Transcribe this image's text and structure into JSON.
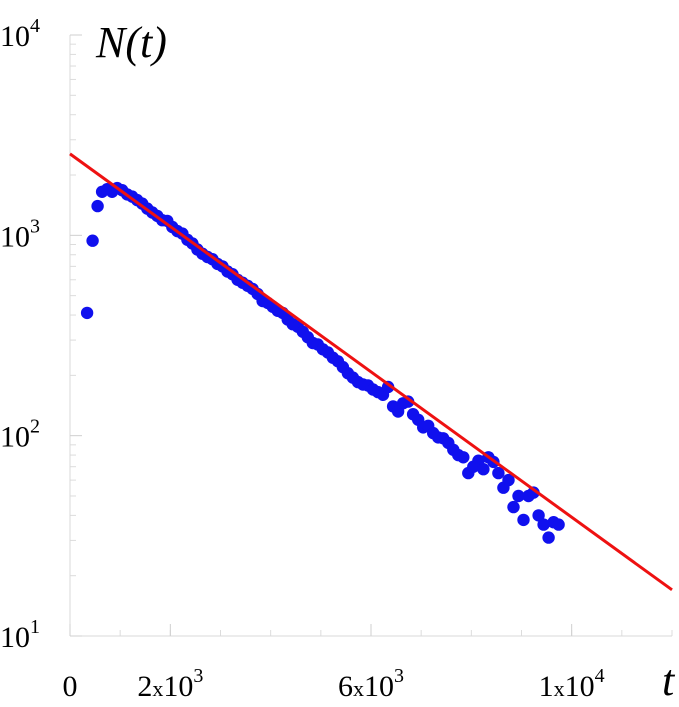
{
  "chart_data": {
    "type": "scatter",
    "title": "",
    "ylabel": "N(t)",
    "xlabel": "t",
    "x_scale": "linear",
    "y_scale": "log",
    "xlim": [
      0,
      12000
    ],
    "ylim": [
      10,
      10000
    ],
    "grid": false,
    "legend": "none",
    "x_ticks": [
      {
        "value": 0,
        "label": "0",
        "base": "0",
        "exp": ""
      },
      {
        "value": 2000,
        "label": "2x10^3",
        "base": "2x10",
        "exp": "3"
      },
      {
        "value": 6000,
        "label": "6x10^3",
        "base": "6x10",
        "exp": "3"
      },
      {
        "value": 10000,
        "label": "1x10^4",
        "base": "1x10",
        "exp": "4"
      }
    ],
    "y_ticks": [
      {
        "value": 10,
        "label": "10^1",
        "base": "10",
        "exp": "1"
      },
      {
        "value": 100,
        "label": "10^2",
        "base": "10",
        "exp": "2"
      },
      {
        "value": 1000,
        "label": "10^3",
        "base": "10",
        "exp": "3"
      },
      {
        "value": 10000,
        "label": "10^4",
        "base": "10",
        "exp": "4"
      }
    ],
    "series": [
      {
        "type": "scatter",
        "color": "#1010ee",
        "points": [
          [
            340,
            410
          ],
          [
            450,
            940
          ],
          [
            550,
            1400
          ],
          [
            640,
            1650
          ],
          [
            740,
            1700
          ],
          [
            840,
            1650
          ],
          [
            940,
            1720
          ],
          [
            1040,
            1680
          ],
          [
            1140,
            1600
          ],
          [
            1240,
            1560
          ],
          [
            1340,
            1500
          ],
          [
            1440,
            1440
          ],
          [
            1540,
            1360
          ],
          [
            1640,
            1300
          ],
          [
            1740,
            1250
          ],
          [
            1840,
            1190
          ],
          [
            1940,
            1180
          ],
          [
            2040,
            1100
          ],
          [
            2140,
            1050
          ],
          [
            2240,
            1020
          ],
          [
            2340,
            950
          ],
          [
            2440,
            910
          ],
          [
            2540,
            850
          ],
          [
            2640,
            810
          ],
          [
            2740,
            780
          ],
          [
            2840,
            760
          ],
          [
            2940,
            720
          ],
          [
            3040,
            700
          ],
          [
            3140,
            660
          ],
          [
            3240,
            640
          ],
          [
            3340,
            600
          ],
          [
            3440,
            580
          ],
          [
            3540,
            560
          ],
          [
            3640,
            540
          ],
          [
            3740,
            510
          ],
          [
            3840,
            470
          ],
          [
            3940,
            460
          ],
          [
            4040,
            440
          ],
          [
            4140,
            420
          ],
          [
            4240,
            410
          ],
          [
            4340,
            380
          ],
          [
            4440,
            360
          ],
          [
            4540,
            350
          ],
          [
            4640,
            330
          ],
          [
            4740,
            310
          ],
          [
            4840,
            290
          ],
          [
            4940,
            285
          ],
          [
            5040,
            270
          ],
          [
            5140,
            260
          ],
          [
            5240,
            245
          ],
          [
            5340,
            235
          ],
          [
            5440,
            220
          ],
          [
            5540,
            205
          ],
          [
            5640,
            195
          ],
          [
            5740,
            185
          ],
          [
            5840,
            180
          ],
          [
            5940,
            178
          ],
          [
            6040,
            170
          ],
          [
            6140,
            165
          ],
          [
            6240,
            160
          ],
          [
            6340,
            175
          ],
          [
            6440,
            140
          ],
          [
            6540,
            132
          ],
          [
            6640,
            145
          ],
          [
            6740,
            148
          ],
          [
            6840,
            128
          ],
          [
            6940,
            120
          ],
          [
            7040,
            110
          ],
          [
            7140,
            112
          ],
          [
            7240,
            103
          ],
          [
            7340,
            98
          ],
          [
            7440,
            97
          ],
          [
            7540,
            92
          ],
          [
            7640,
            85
          ],
          [
            7740,
            80
          ],
          [
            7840,
            78
          ],
          [
            7940,
            65
          ],
          [
            8040,
            70
          ],
          [
            8140,
            75
          ],
          [
            8240,
            68
          ],
          [
            8340,
            78
          ],
          [
            8440,
            74
          ],
          [
            8540,
            65
          ],
          [
            8640,
            55
          ],
          [
            8740,
            60
          ],
          [
            8840,
            44
          ],
          [
            8940,
            50
          ],
          [
            9040,
            38
          ],
          [
            9140,
            50
          ],
          [
            9240,
            52
          ],
          [
            9340,
            40
          ],
          [
            9440,
            36
          ],
          [
            9540,
            31
          ],
          [
            9640,
            37
          ],
          [
            9740,
            36
          ]
        ]
      },
      {
        "type": "line",
        "color": "#ee1111",
        "x": [
          0,
          12000
        ],
        "y": [
          2550,
          17
        ]
      }
    ]
  }
}
